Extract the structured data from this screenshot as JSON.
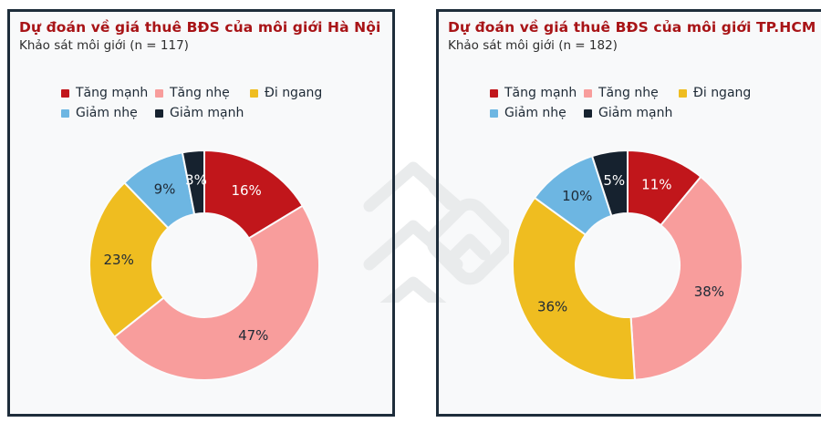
{
  "chart_data": [
    {
      "type": "pie",
      "variant": "donut",
      "title": "Dự đoán về giá thuê BĐS của môi giới Hà Nội",
      "subtitle": "Khảo sát môi giới (n = 117)",
      "categories": [
        "Tăng mạnh",
        "Tăng nhẹ",
        "Đi ngang",
        "Giảm nhẹ",
        "Giảm mạnh"
      ],
      "values": [
        16,
        47,
        23,
        9,
        3
      ],
      "labels": [
        "16%",
        "47%",
        "23%",
        "9%",
        "3%"
      ],
      "colors": [
        "#c1161b",
        "#f89d9c",
        "#efbd20",
        "#6db6e2",
        "#16222f"
      ],
      "label_colors": [
        "#ffffff",
        "#1e2a36",
        "#1e2a36",
        "#1e2a36",
        "#ffffff"
      ],
      "start_angle_deg": 0,
      "direction": "clockwise",
      "donut_hole_ratio": 0.45,
      "legend_position": "top-left"
    },
    {
      "type": "pie",
      "variant": "donut",
      "title": "Dự đoán về giá thuê BĐS của môi giới TP.HCM",
      "subtitle": "Khảo sát môi giới (n = 182)",
      "categories": [
        "Tăng mạnh",
        "Tăng nhẹ",
        "Đi ngang",
        "Giảm nhẹ",
        "Giảm mạnh"
      ],
      "values": [
        11,
        38,
        36,
        10,
        5
      ],
      "labels": [
        "11%",
        "38%",
        "36%",
        "10%",
        "5%"
      ],
      "colors": [
        "#c1161b",
        "#f89d9c",
        "#efbd20",
        "#6db6e2",
        "#16222f"
      ],
      "label_colors": [
        "#ffffff",
        "#1e2a36",
        "#1e2a36",
        "#1e2a36",
        "#ffffff"
      ],
      "start_angle_deg": 0,
      "direction": "clockwise",
      "donut_hole_ratio": 0.45,
      "legend_position": "top-left"
    }
  ],
  "legend": {
    "items": [
      {
        "label": "Tăng mạnh",
        "color": "#c1161b"
      },
      {
        "label": "Tăng nhẹ",
        "color": "#f89d9c"
      },
      {
        "label": "Đi ngang",
        "color": "#efbd20"
      },
      {
        "label": "Giảm nhẹ",
        "color": "#6db6e2"
      },
      {
        "label": "Giảm mạnh",
        "color": "#16222f"
      }
    ]
  },
  "watermark": {
    "icon": "chevrons-diamond-logo",
    "color": "#e9ebec"
  },
  "colors": {
    "panel_border": "#1e2d3b",
    "panel_background": "#f8f9fa",
    "title_red": "#a81417",
    "text_dark": "#1e2a36"
  }
}
